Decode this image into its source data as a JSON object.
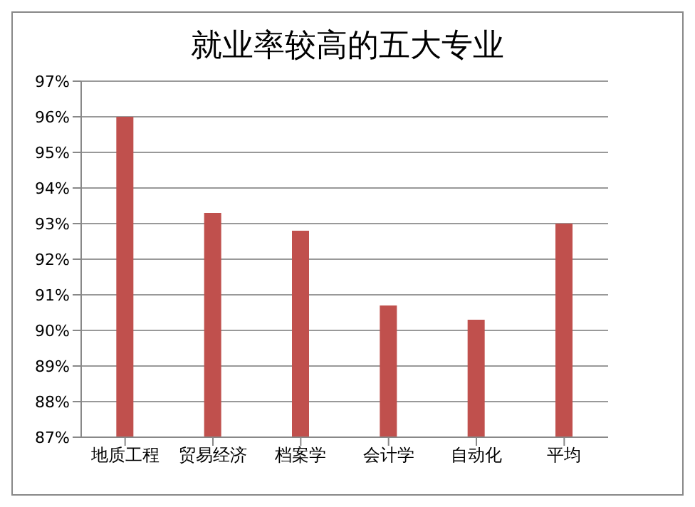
{
  "chart_data": {
    "type": "bar",
    "title": "就业率较高的五大专业",
    "categories": [
      "地质工程",
      "贸易经济",
      "档案学",
      "会计学",
      "自动化",
      "平均"
    ],
    "values": [
      96.0,
      93.3,
      92.8,
      90.7,
      90.3,
      93.0
    ],
    "color": "#c0504d",
    "ylim": [
      87,
      97
    ],
    "yticks": [
      {
        "value": 87,
        "label": "87%"
      },
      {
        "value": 88,
        "label": "88%"
      },
      {
        "value": 89,
        "label": "89%"
      },
      {
        "value": 90,
        "label": "90%"
      },
      {
        "value": 91,
        "label": "91%"
      },
      {
        "value": 92,
        "label": "92%"
      },
      {
        "value": 93,
        "label": "93%"
      },
      {
        "value": 94,
        "label": "94%"
      },
      {
        "value": 95,
        "label": "95%"
      },
      {
        "value": 96,
        "label": "96%"
      },
      {
        "value": 97,
        "label": "97%"
      }
    ],
    "grid": "y"
  }
}
